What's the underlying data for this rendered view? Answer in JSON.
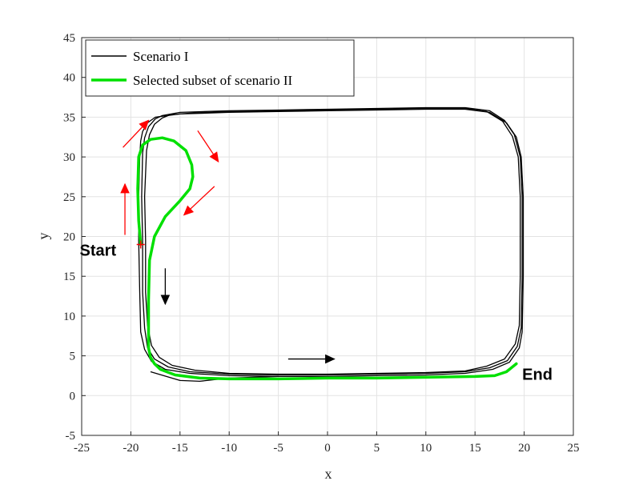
{
  "chart_data": {
    "type": "line",
    "xlabel": "x",
    "ylabel": "y",
    "xlim": [
      -25,
      25
    ],
    "ylim": [
      -5,
      45
    ],
    "xticks": [
      -25,
      -20,
      -15,
      -10,
      -5,
      0,
      5,
      10,
      15,
      20,
      25
    ],
    "yticks": [
      -5,
      0,
      5,
      10,
      15,
      20,
      25,
      30,
      35,
      40,
      45
    ],
    "grid": true,
    "legend_position": "top-left",
    "colors": {
      "scenario1": "#000000",
      "scenario2": "#00e000",
      "red_arrow": "#ff0000",
      "black_arrow": "#000000"
    },
    "series": [
      {
        "name": "Scenario I",
        "laps": [
          {
            "x": [
              -19.2,
              -19.2,
              -19.1,
              -19.0,
              -18.8,
              -18.3,
              -17.5,
              -15.0,
              -10.0,
              -5.0,
              0.0,
              5.0,
              10.0,
              14.0,
              16.5,
              18.2,
              19.2,
              19.7,
              19.9,
              19.9,
              19.8,
              19.5,
              18.5,
              16.8,
              14.0,
              10.0,
              5.0,
              0.0,
              -5.0,
              -10.0,
              -14.0,
              -16.5,
              -17.9,
              -18.6,
              -19.0,
              -19.1,
              -19.2
            ],
            "y": [
              19.5,
              25.0,
              30.0,
              32.0,
              33.2,
              34.3,
              35.0,
              35.4,
              35.6,
              35.7,
              35.8,
              35.9,
              36.0,
              36.0,
              35.6,
              34.3,
              32.5,
              30.0,
              25.0,
              15.0,
              8.0,
              6.0,
              4.2,
              3.3,
              2.8,
              2.6,
              2.5,
              2.4,
              2.4,
              2.5,
              2.8,
              3.3,
              4.3,
              5.8,
              8.0,
              13.0,
              19.5
            ]
          },
          {
            "x": [
              -18.8,
              -18.9,
              -18.8,
              -18.6,
              -18.2,
              -17.5,
              -16.8,
              -15.0,
              -10.0,
              -5.0,
              0.0,
              5.0,
              10.0,
              14.0,
              16.5,
              18.0,
              19.0,
              19.6,
              19.8,
              19.8,
              19.7,
              19.3,
              18.3,
              16.5,
              14.0,
              10.0,
              5.0,
              0.0,
              -5.0,
              -10.0,
              -14.0,
              -16.2,
              -17.6,
              -18.3,
              -18.6,
              -18.8,
              -18.8
            ],
            "y": [
              19.5,
              25.0,
              30.5,
              32.4,
              33.8,
              34.8,
              35.2,
              35.6,
              35.8,
              35.9,
              36.0,
              36.1,
              36.2,
              36.2,
              35.8,
              34.6,
              32.8,
              30.0,
              25.0,
              15.0,
              8.5,
              6.2,
              4.4,
              3.5,
              3.0,
              2.8,
              2.7,
              2.6,
              2.6,
              2.7,
              3.0,
              3.6,
              4.6,
              6.0,
              8.5,
              13.0,
              19.5
            ]
          },
          {
            "x": [
              -18.5,
              -18.6,
              -18.4,
              -18.1,
              -17.6,
              -16.8,
              -16.0,
              -14.0,
              -10.0,
              -5.0,
              0.0,
              5.0,
              10.0,
              14.0,
              16.2,
              17.8,
              18.8,
              19.4,
              19.6,
              19.6,
              19.5,
              19.1,
              18.0,
              16.2,
              14.0,
              10.0,
              5.0,
              0.0,
              -5.0,
              -10.0,
              -13.5,
              -15.8,
              -17.1,
              -17.9,
              -18.3,
              -18.5,
              -18.5
            ],
            "y": [
              19.5,
              25.0,
              30.8,
              32.8,
              34.1,
              34.9,
              35.3,
              35.5,
              35.7,
              35.8,
              35.9,
              36.0,
              36.1,
              36.1,
              35.7,
              34.5,
              32.6,
              30.0,
              25.0,
              15.0,
              8.8,
              6.5,
              4.6,
              3.7,
              3.1,
              2.9,
              2.8,
              2.7,
              2.7,
              2.8,
              3.2,
              3.8,
              4.8,
              6.3,
              8.8,
              13.0,
              19.5
            ]
          },
          {
            "x": [
              -18.0,
              -15.0,
              -13.0,
              -10.0,
              -5.0
            ],
            "y": [
              3.0,
              1.9,
              1.8,
              2.2,
              2.4
            ]
          }
        ]
      },
      {
        "name": "Selected subset of scenario II",
        "x": [
          -19.0,
          -19.2,
          -19.3,
          -19.2,
          -18.8,
          -18.0,
          -16.8,
          -15.6,
          -14.4,
          -13.8,
          -13.7,
          -14.0,
          -15.0,
          -16.5,
          -17.6,
          -18.1,
          -18.2,
          -18.2,
          -18.2,
          -18.0,
          -17.6,
          -17.0,
          -15.5,
          -13.0,
          -10.0,
          -5.0,
          0.0,
          5.0,
          10.0,
          15.0,
          17.0,
          18.2,
          19.2
        ],
        "y": [
          19.0,
          22.0,
          26.0,
          30.0,
          31.5,
          32.2,
          32.4,
          32.0,
          30.8,
          29.0,
          27.5,
          26.0,
          24.5,
          22.5,
          20.0,
          17.0,
          12.0,
          8.0,
          6.0,
          4.8,
          4.0,
          3.3,
          2.6,
          2.2,
          2.1,
          2.1,
          2.2,
          2.2,
          2.3,
          2.4,
          2.5,
          3.0,
          4.0
        ]
      }
    ],
    "annotations": [
      {
        "text": "Start",
        "x": -25.2,
        "y": 17.6
      },
      {
        "text": "End",
        "x": 19.8,
        "y": 2.0
      }
    ],
    "arrows_red": [
      {
        "from": [
          -20.6,
          20.2
        ],
        "to": [
          -20.6,
          26.6
        ]
      },
      {
        "from": [
          -20.8,
          31.2
        ],
        "to": [
          -18.2,
          34.6
        ]
      },
      {
        "from": [
          -13.2,
          33.3
        ],
        "to": [
          -11.1,
          29.4
        ]
      },
      {
        "from": [
          -11.5,
          26.3
        ],
        "to": [
          -14.6,
          22.7
        ]
      }
    ],
    "arrows_black": [
      {
        "from": [
          -16.5,
          16.0
        ],
        "to": [
          -16.5,
          11.5
        ]
      },
      {
        "from": [
          -4.0,
          4.6
        ],
        "to": [
          0.7,
          4.6
        ]
      }
    ]
  }
}
